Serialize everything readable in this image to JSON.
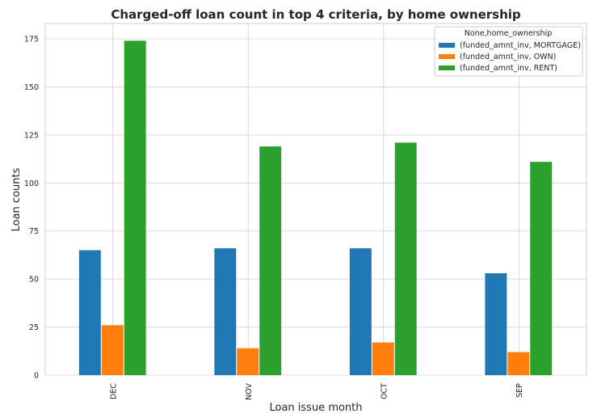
{
  "chart_data": {
    "type": "bar",
    "title": "Charged-off loan count in top 4 criteria, by home ownership",
    "xlabel": "Loan issue month",
    "ylabel": "Loan counts",
    "categories": [
      "DEC",
      "NOV",
      "OCT",
      "SEP"
    ],
    "ylim": [
      0,
      183
    ],
    "yticks": [
      0,
      25,
      50,
      75,
      100,
      125,
      150,
      175
    ],
    "grid": true,
    "legend": {
      "title": "None,home_ownership",
      "placement": "top-right"
    },
    "series": [
      {
        "name": "(funded_amnt_inv, MORTGAGE)",
        "color": "#1f77b4",
        "values": [
          65,
          66,
          66,
          53
        ]
      },
      {
        "name": "(funded_amnt_inv, OWN)",
        "color": "#ff7f0e",
        "values": [
          26,
          14,
          17,
          12
        ]
      },
      {
        "name": "(funded_amnt_inv, RENT)",
        "color": "#2ca02c",
        "values": [
          174,
          119,
          121,
          111
        ]
      }
    ]
  }
}
